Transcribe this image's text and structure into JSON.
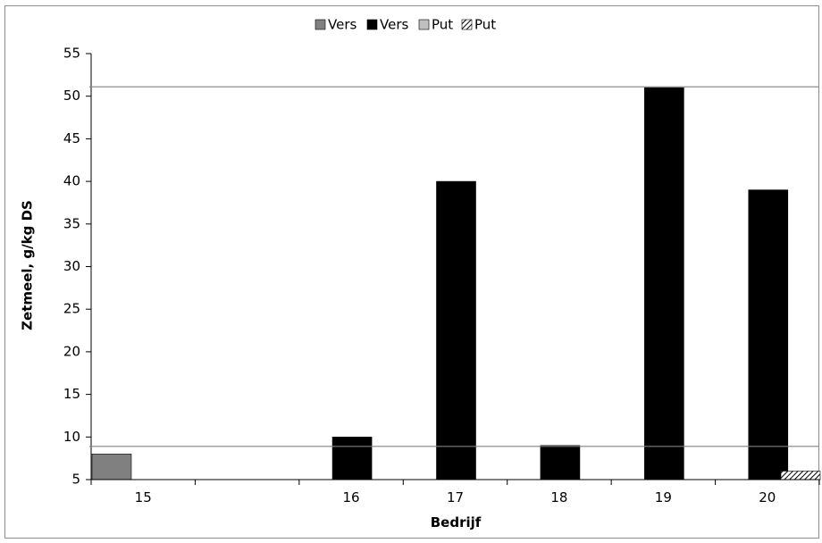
{
  "chart_data": {
    "type": "bar",
    "xlabel": "Bedrijf",
    "ylabel": "Zetmeel, g/kg DS",
    "ylim": [
      5,
      55
    ],
    "yticks": [
      5,
      10,
      15,
      20,
      25,
      30,
      35,
      40,
      45,
      50,
      55
    ],
    "categories": [
      "15",
      "",
      "16",
      "17",
      "18",
      "19",
      "20"
    ],
    "series": [
      {
        "name": "Vers",
        "color": "#808080",
        "pattern": "solid",
        "values": [
          8,
          null,
          null,
          null,
          null,
          null,
          null
        ]
      },
      {
        "name": "Vers",
        "color": "#000000",
        "pattern": "solid",
        "values": [
          null,
          null,
          10,
          40,
          9,
          51,
          39
        ]
      },
      {
        "name": "Put",
        "color": "#c0c0c0",
        "pattern": "solid",
        "values": [
          null,
          null,
          null,
          null,
          null,
          null,
          null
        ]
      },
      {
        "name": "Put",
        "color": "#000000",
        "pattern": "hatched",
        "values": [
          null,
          null,
          null,
          null,
          null,
          null,
          6
        ]
      }
    ],
    "reference_lines": [
      51.1,
      8.9
    ],
    "legend_position": "top",
    "grid": false
  }
}
